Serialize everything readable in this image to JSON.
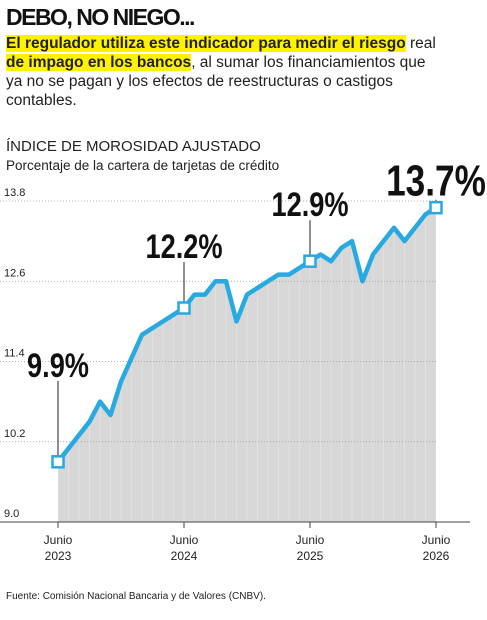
{
  "header": {
    "title": "DEBO, NO NIEGO...",
    "intro": [
      {
        "text": "El regulador utiliza este indicador para medir el riesgo",
        "highlight": true
      },
      {
        "text": "real",
        "highlight": false
      },
      {
        "text": "de impago en los bancos",
        "highlight": true
      },
      {
        "text": ", al sumar los financiamientos que ya no se pagan y los efectos de reestructuras o castigos contables.",
        "highlight": false
      }
    ]
  },
  "chart_data": {
    "type": "area-line",
    "title": "ÍNDICE DE MOROSIDAD AJUSTADO",
    "subtitle": "Porcentaje de la cartera de tarjetas de crédito",
    "categories": [
      "Junio 2023",
      null,
      null,
      null,
      null,
      null,
      null,
      null,
      null,
      null,
      null,
      null,
      "Junio 2024",
      null,
      null,
      null,
      null,
      null,
      null,
      null,
      null,
      null,
      null,
      null,
      "Junio 2025",
      null,
      null,
      null,
      null,
      null,
      null,
      null,
      null,
      null,
      null,
      null,
      "Junio 2026"
    ],
    "values": [
      9.9,
      10.1,
      10.3,
      10.5,
      10.8,
      10.6,
      11.1,
      11.45,
      11.8,
      11.9,
      12.0,
      12.1,
      12.2,
      12.4,
      12.4,
      12.6,
      12.6,
      12.0,
      12.4,
      12.5,
      12.6,
      12.7,
      12.7,
      12.8,
      12.9,
      13.0,
      12.9,
      13.1,
      13.2,
      12.6,
      13.0,
      13.2,
      13.4,
      13.2,
      13.4,
      13.6,
      13.7
    ],
    "value_labels": [
      "9.9%",
      null,
      null,
      null,
      null,
      null,
      null,
      null,
      null,
      null,
      null,
      null,
      "12.2%",
      null,
      null,
      null,
      null,
      null,
      null,
      null,
      null,
      null,
      null,
      null,
      "12.9%",
      null,
      null,
      null,
      null,
      null,
      null,
      null,
      null,
      null,
      null,
      null,
      "13.7%"
    ],
    "color": "#27a9e1",
    "area_color": "#d7d7d7",
    "ylim": [
      9,
      13.8
    ],
    "yticks": [
      {
        "value": 9,
        "label": "9.0"
      },
      10.2,
      11.4,
      12.6,
      13.8
    ],
    "grid": true,
    "source": "Fuente: Comisión Nacional Bancaria y de Valores (CNBV)."
  }
}
